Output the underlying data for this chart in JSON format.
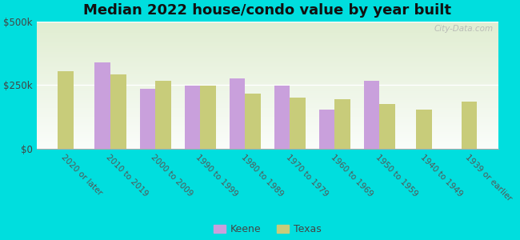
{
  "title": "Median 2022 house/condo value by year built",
  "categories": [
    "2020 or later",
    "2010 to 2019",
    "2000 to 2009",
    "1990 to 1999",
    "1980 to 1989",
    "1970 to 1979",
    "1960 to 1969",
    "1950 to 1959",
    "1940 to 1949",
    "1939 or earlier"
  ],
  "keene_values": [
    null,
    340000,
    235000,
    248000,
    275000,
    248000,
    155000,
    268000,
    null,
    null
  ],
  "texas_values": [
    305000,
    290000,
    265000,
    248000,
    215000,
    200000,
    195000,
    175000,
    155000,
    185000
  ],
  "keene_color": "#c9a0dc",
  "texas_color": "#c8cc7a",
  "background_color": "#00dede",
  "plot_bg_color": "#eaf2dc",
  "ylim": [
    0,
    500000
  ],
  "ytick_labels": [
    "$0",
    "$250k",
    "$500k"
  ],
  "watermark": "City-Data.com",
  "title_fontsize": 13,
  "legend_labels": [
    "Keene",
    "Texas"
  ],
  "bar_width": 0.35
}
